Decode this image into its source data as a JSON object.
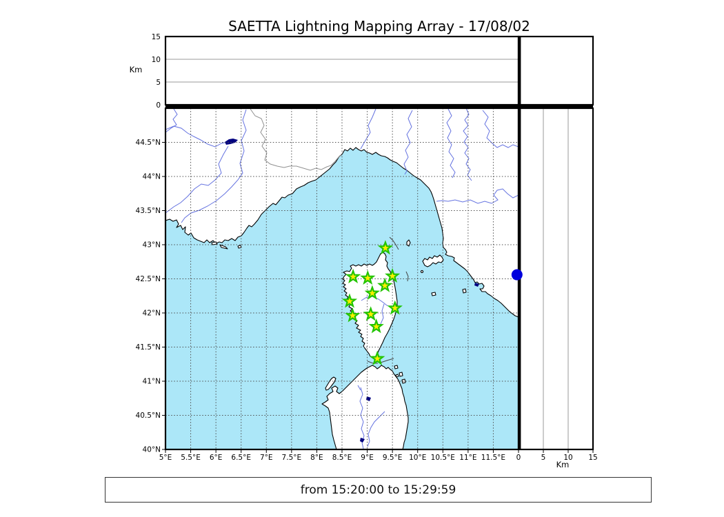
{
  "title": "SAETTA Lightning Mapping Array - 17/08/02",
  "footer": "from 15:20:00 to 15:29:59",
  "map": {
    "lon_range": [
      5,
      12
    ],
    "lat_range": [
      40,
      45
    ],
    "grid_step_deg": 0.5,
    "lon_tick_values": [
      5,
      5.5,
      6,
      6.5,
      7,
      7.5,
      8,
      8.5,
      9,
      9.5,
      10,
      10.5,
      11,
      11.5
    ],
    "lon_tick_labels": [
      "5°E",
      "5.5°E",
      "6°E",
      "6.5°E",
      "7°E",
      "7.5°E",
      "8°E",
      "8.5°E",
      "9°E",
      "9.5°E",
      "10°E",
      "10.5°E",
      "11°E",
      "11.5°E"
    ],
    "lat_tick_values": [
      44.5,
      44,
      43.5,
      43,
      42.5,
      42,
      41.5,
      41,
      40.5,
      40
    ],
    "lat_tick_labels": [
      "44.5°N",
      "44°N",
      "43.5°N",
      "43°N",
      "42.5°N",
      "42°N",
      "41.5°N",
      "41°N",
      "40.5°N",
      "40°N"
    ]
  },
  "altitude_axis": {
    "unit": "Km",
    "max_km": 15,
    "tick_values": [
      0,
      5,
      10,
      15
    ],
    "tick_labels": [
      "0",
      "5",
      "10",
      "15"
    ]
  },
  "stations": [
    {
      "lon": 9.36,
      "lat": 42.95
    },
    {
      "lon": 8.72,
      "lat": 42.53
    },
    {
      "lon": 9.01,
      "lat": 42.51
    },
    {
      "lon": 9.5,
      "lat": 42.54
    },
    {
      "lon": 9.35,
      "lat": 42.4
    },
    {
      "lon": 9.1,
      "lat": 42.29
    },
    {
      "lon": 8.65,
      "lat": 42.17
    },
    {
      "lon": 9.55,
      "lat": 42.07
    },
    {
      "lon": 8.71,
      "lat": 41.96
    },
    {
      "lon": 9.07,
      "lat": 41.98
    },
    {
      "lon": 9.18,
      "lat": 41.8
    },
    {
      "lon": 9.2,
      "lat": 41.33
    }
  ],
  "highlight_dot": {
    "lon": 11.97,
    "lat": 42.56
  },
  "colors": {
    "sea": "#ace7f8",
    "land": "#ffffff",
    "coastline": "#000000",
    "river": "#6472e0",
    "lake": "#000080",
    "grid": "#4d4d4d",
    "panel_grid": "#999999",
    "country_border": "#909090",
    "route_line": "#444444",
    "station_fill": "#ffee00",
    "station_stroke": "#22c400",
    "dot": "#0000dd"
  }
}
